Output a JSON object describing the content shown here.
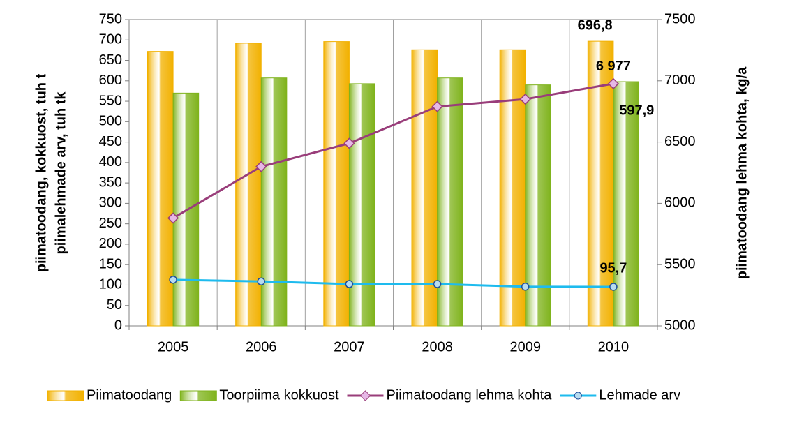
{
  "chart_data": {
    "type": "bar-line",
    "ylabel": [
      "piimatoodang, kokkuost,  tuh t",
      "piimalehmade arv, tuh tk"
    ],
    "y2label": "piimatoodang lehma kohta, kg/a",
    "categories": [
      "2005",
      "2006",
      "2007",
      "2008",
      "2009",
      "2010"
    ],
    "series": [
      {
        "name": "Piimatoodang",
        "kind": "bar",
        "color": "#f2b100",
        "values": [
          672,
          692,
          696,
          676,
          676,
          696.8
        ],
        "value_labels": [
          null,
          null,
          null,
          null,
          null,
          "696,8"
        ]
      },
      {
        "name": "Toorpiima kokkuost",
        "kind": "bar",
        "color": "#7fb31c",
        "values": [
          570,
          607,
          593,
          607,
          590,
          597.9
        ],
        "value_labels": [
          null,
          null,
          null,
          null,
          null,
          "597,9"
        ]
      },
      {
        "name": "Piimatoodang lehma kohta",
        "kind": "line",
        "axis": "y2",
        "color": "#993d7a",
        "values": [
          5880,
          6300,
          6490,
          6790,
          6850,
          6977
        ],
        "value_labels": [
          null,
          null,
          null,
          null,
          null,
          "6 977"
        ]
      },
      {
        "name": "Lehmade arv",
        "kind": "line",
        "color": "#1ebbee",
        "values": [
          113,
          109,
          102.5,
          102.5,
          96,
          95.7
        ],
        "value_labels": [
          null,
          null,
          null,
          null,
          null,
          "95,7"
        ]
      }
    ],
    "ylim": [
      0,
      750
    ],
    "yticks": [
      0,
      50,
      100,
      150,
      200,
      250,
      300,
      350,
      400,
      450,
      500,
      550,
      600,
      650,
      700,
      750
    ],
    "y2lim": [
      5000,
      7500
    ],
    "y2ticks": [
      5000,
      5500,
      6000,
      6500,
      7000,
      7500
    ],
    "grid": "x",
    "legend": "bottom"
  }
}
